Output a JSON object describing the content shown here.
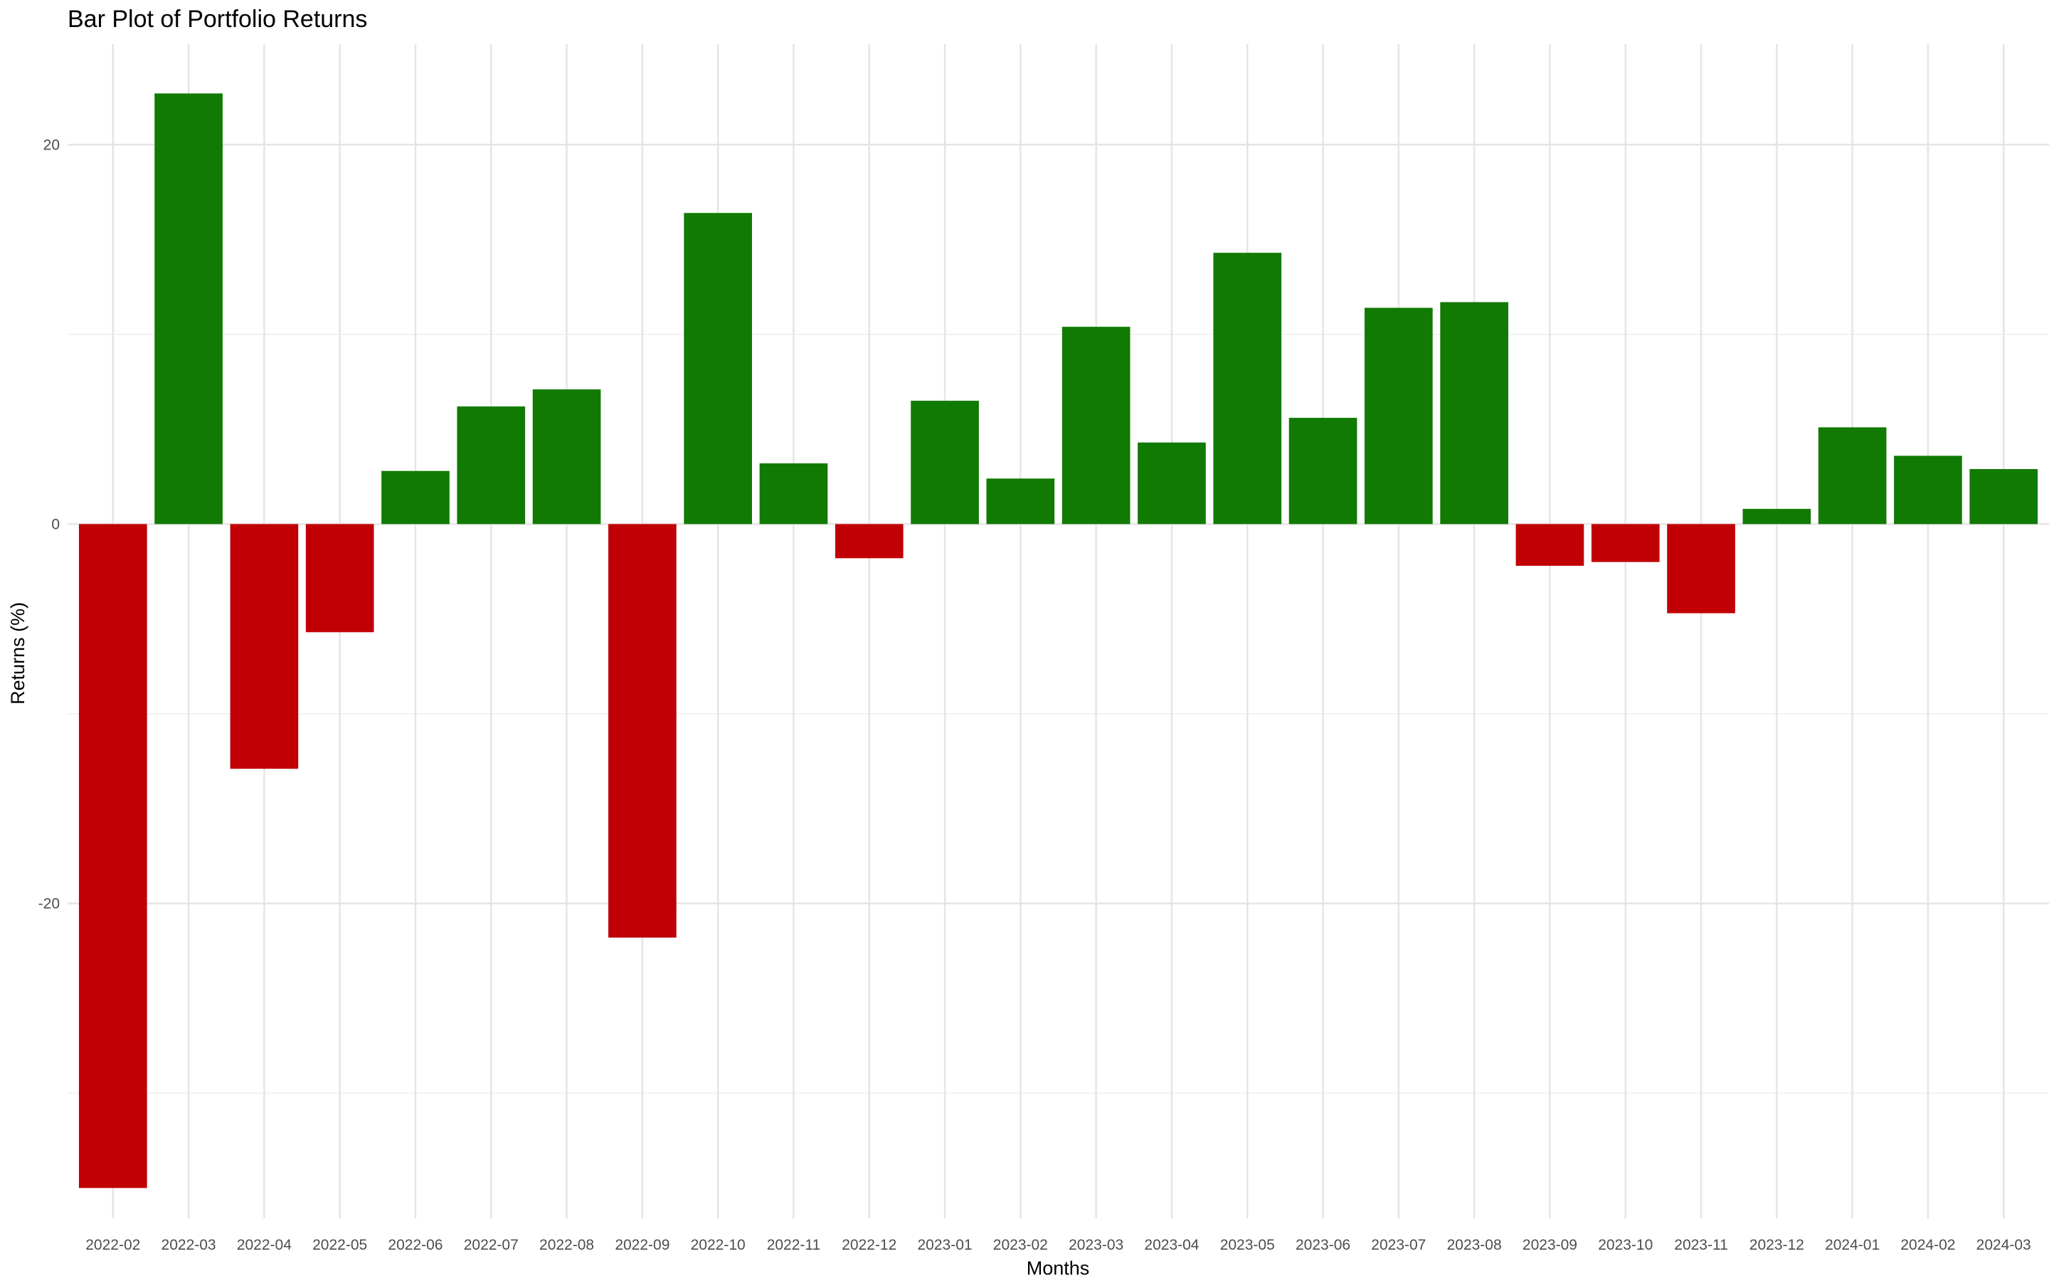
{
  "chart_data": {
    "type": "bar",
    "title": "Bar Plot of Portfolio Returns",
    "xlabel": "Months",
    "ylabel": "Returns (%)",
    "categories": [
      "2022-02",
      "2022-03",
      "2022-04",
      "2022-05",
      "2022-06",
      "2022-07",
      "2022-08",
      "2022-09",
      "2022-10",
      "2022-11",
      "2022-12",
      "2023-01",
      "2023-02",
      "2023-03",
      "2023-04",
      "2023-05",
      "2023-06",
      "2023-07",
      "2023-08",
      "2023-09",
      "2023-10",
      "2023-11",
      "2023-12",
      "2024-01",
      "2024-02",
      "2024-03"
    ],
    "values": [
      -35.0,
      22.7,
      -12.9,
      -5.7,
      2.8,
      6.2,
      7.1,
      -21.8,
      16.4,
      3.2,
      -1.8,
      6.5,
      2.4,
      10.4,
      4.3,
      14.3,
      5.6,
      11.4,
      11.7,
      -2.2,
      -2.0,
      -4.7,
      0.8,
      5.1,
      3.6,
      2.9
    ],
    "ylim": [
      -36.6,
      25.3
    ],
    "yticks": [
      -20,
      0,
      20
    ],
    "ytick_labels": [
      "-20",
      "0",
      "20"
    ],
    "minor_yticks": [
      -30,
      -10,
      10
    ],
    "grid": true,
    "legend": "none",
    "colors": {
      "positive": "#117a02",
      "negative": "#c00005",
      "grid_major": "#e5e5e5",
      "grid_minor": "#f2f2f2"
    }
  }
}
